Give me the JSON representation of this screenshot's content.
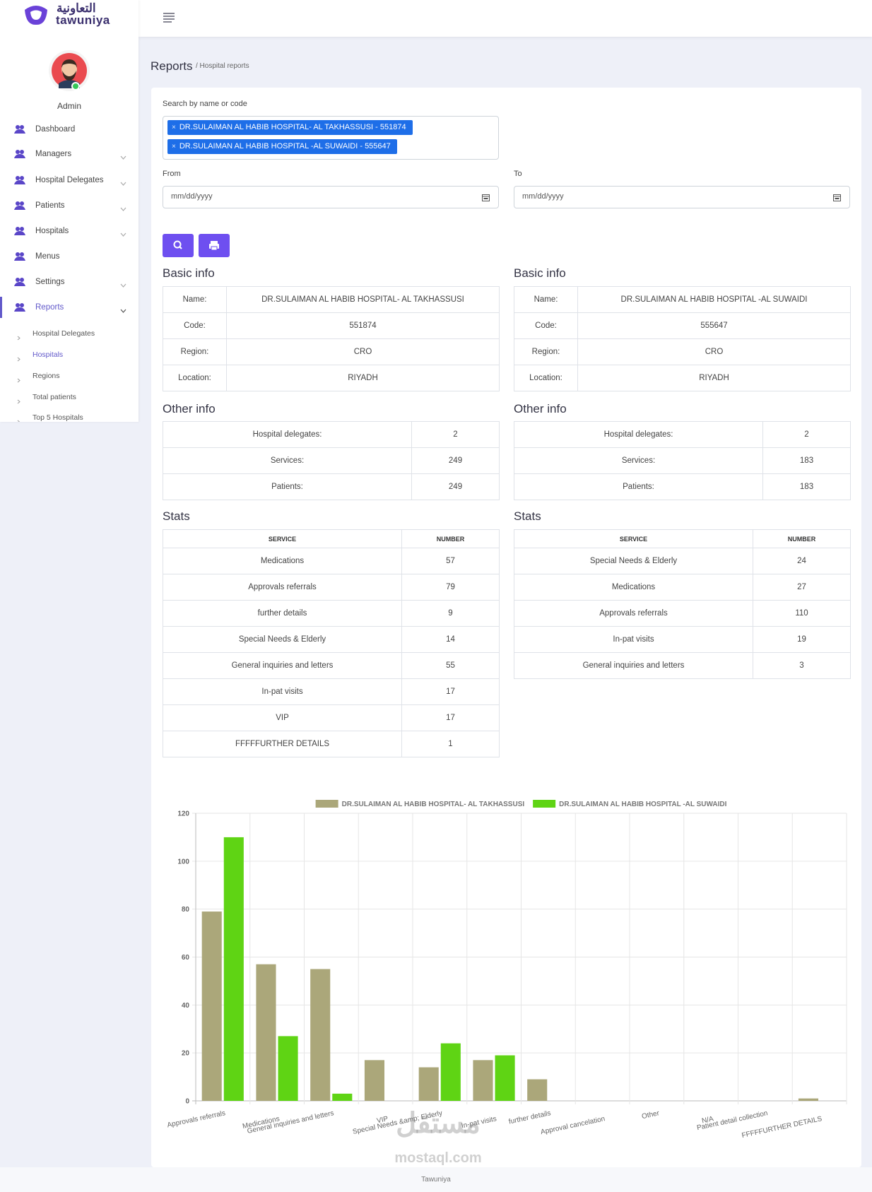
{
  "brand": {
    "arabic": "التعاونية",
    "name": "tawuniya"
  },
  "sidebar": {
    "user": "Admin",
    "menu": [
      "Dashboard",
      "Managers",
      "Hospital Delegates",
      "Patients",
      "Hospitals",
      "Menus",
      "Settings",
      "Reports"
    ],
    "submenu": [
      "Hospital Delegates",
      "Hospitals",
      "Regions",
      "Total patients",
      "Top 5 Hospitals"
    ]
  },
  "breadcrumb": {
    "title": "Reports",
    "path": "/ Hospital reports"
  },
  "search": {
    "label": "Search by name or code",
    "remove": "×",
    "tags": [
      "DR.SULAIMAN AL HABIB HOSPITAL- AL TAKHASSUSI - 551874",
      "DR.SULAIMAN AL HABIB HOSPITAL -AL SUWAIDI - 555647"
    ]
  },
  "from": {
    "label": "From",
    "placeholder": "mm/dd/yyyy"
  },
  "to": {
    "label": "To",
    "placeholder": "mm/dd/yyyy"
  },
  "hospitals": [
    {
      "basic_heading": "Basic info",
      "basic": [
        [
          "Name:",
          "DR.SULAIMAN AL HABIB HOSPITAL- AL TAKHASSUSI"
        ],
        [
          "Code:",
          "551874"
        ],
        [
          "Region:",
          "CRO"
        ],
        [
          "Location:",
          "RIYADH"
        ]
      ],
      "other_heading": "Other info",
      "other": [
        [
          "Hospital delegates:",
          2
        ],
        [
          "Services:",
          249
        ],
        [
          "Patients:",
          249
        ]
      ],
      "stats_heading": "Stats",
      "stats_header": [
        "SERVICE",
        "NUMBER"
      ],
      "stats": [
        [
          "Medications",
          57
        ],
        [
          "Approvals referrals",
          79
        ],
        [
          "further details",
          9
        ],
        [
          "Special Needs & Elderly",
          14
        ],
        [
          "General inquiries and letters",
          55
        ],
        [
          "In-pat visits",
          17
        ],
        [
          "VIP",
          17
        ],
        [
          "FFFFFURTHER DETAILS",
          1
        ]
      ]
    },
    {
      "basic_heading": "Basic info",
      "basic": [
        [
          "Name:",
          "DR.SULAIMAN AL HABIB HOSPITAL -AL SUWAIDI"
        ],
        [
          "Code:",
          "555647"
        ],
        [
          "Region:",
          "CRO"
        ],
        [
          "Location:",
          "RIYADH"
        ]
      ],
      "other_heading": "Other info",
      "other": [
        [
          "Hospital delegates:",
          2
        ],
        [
          "Services:",
          183
        ],
        [
          "Patients:",
          183
        ]
      ],
      "stats_heading": "Stats",
      "stats_header": [
        "SERVICE",
        "NUMBER"
      ],
      "stats": [
        [
          "Special Needs & Elderly",
          24
        ],
        [
          "Medications",
          27
        ],
        [
          "Approvals referrals",
          110
        ],
        [
          "In-pat visits",
          19
        ],
        [
          "General inquiries and letters",
          3
        ]
      ]
    }
  ],
  "chart_data": {
    "type": "bar",
    "categories": [
      "Approvals referrals",
      "Medications",
      "General inquiries and letters",
      "VIP",
      "Special Needs &amp; Elderly",
      "In-pat visits",
      "further details",
      "Approval cancelation",
      "Other",
      "N/A",
      "Patient detail collection",
      "FFFFFURTHER DETAILS"
    ],
    "series": [
      {
        "name": "DR.SULAIMAN AL HABIB HOSPITAL- AL TAKHASSUSI",
        "color": "#aba77a",
        "values": [
          79,
          57,
          55,
          17,
          14,
          17,
          9,
          null,
          null,
          null,
          null,
          1
        ]
      },
      {
        "name": "DR.SULAIMAN AL HABIB HOSPITAL -AL SUWAIDI",
        "color": "#5fd414",
        "values": [
          110,
          27,
          3,
          null,
          24,
          19,
          null,
          null,
          null,
          null,
          null,
          null
        ]
      }
    ],
    "ylim": [
      0,
      120
    ],
    "yticks": [
      0,
      20,
      40,
      60,
      80,
      100,
      120
    ],
    "grid": true
  },
  "watermark": {
    "arabic": "مستقل",
    "latin": "mostaql.com"
  },
  "footer": "Tawuniya"
}
